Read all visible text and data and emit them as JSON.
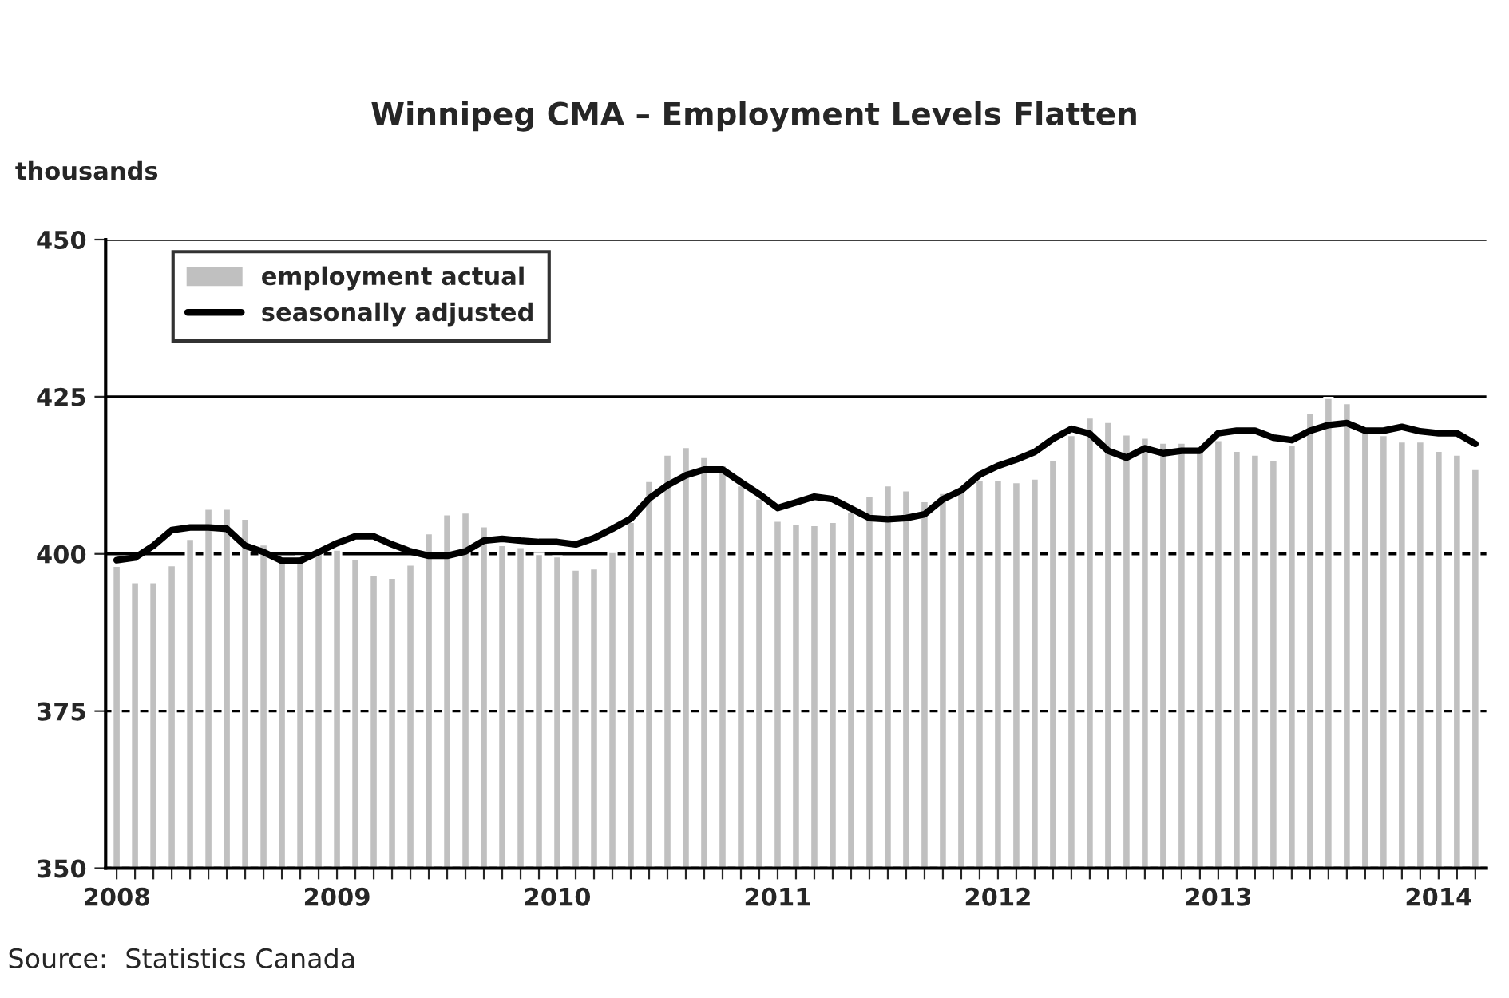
{
  "chart_data": {
    "type": "bar",
    "title": "Winnipeg CMA – Employment Levels Flatten",
    "ylabel": "thousands",
    "categories": [
      "2008",
      null,
      null,
      null,
      null,
      null,
      null,
      null,
      null,
      null,
      null,
      null,
      "2009",
      null,
      null,
      null,
      null,
      null,
      null,
      null,
      null,
      null,
      null,
      null,
      "2010",
      null,
      null,
      null,
      null,
      null,
      null,
      null,
      null,
      null,
      null,
      null,
      "2011",
      null,
      null,
      null,
      null,
      null,
      null,
      null,
      null,
      null,
      null,
      null,
      "2012",
      null,
      null,
      null,
      null,
      null,
      null,
      null,
      null,
      null,
      null,
      null,
      "2013",
      null,
      null,
      null,
      null,
      null,
      null,
      null,
      null,
      null,
      null,
      null,
      "2014",
      null,
      null
    ],
    "series": [
      {
        "name": "employment actual",
        "color": "#c0c0c0",
        "values": [
          398.1,
          395.5,
          395.5,
          398.2,
          402.4,
          407.2,
          407.2,
          405.6,
          401.5,
          399.0,
          399.6,
          400.7,
          400.7,
          399.2,
          396.6,
          396.2,
          398.3,
          403.3,
          406.3,
          406.6,
          404.4,
          401.4,
          401.1,
          400.0,
          399.6,
          397.5,
          397.7,
          400.3,
          405.1,
          411.6,
          415.8,
          417.0,
          415.4,
          414.1,
          410.9,
          408.8,
          405.3,
          404.8,
          404.6,
          405.1,
          406.7,
          409.2,
          410.9,
          410.1,
          408.4,
          409.7,
          410.1,
          411.8,
          411.7,
          411.4,
          412.0,
          414.9,
          418.9,
          421.7,
          421.0,
          419.0,
          418.5,
          417.7,
          417.7,
          416.4,
          418.1,
          416.4,
          415.8,
          414.9,
          417.3,
          422.5,
          424.8,
          424.0,
          419.4,
          418.9,
          417.9,
          417.9,
          416.4,
          415.8,
          413.5
        ]
      },
      {
        "name": "seasonally adjusted",
        "type": "line",
        "color": "#000000",
        "values": [
          399.0,
          399.4,
          401.3,
          403.8,
          404.2,
          404.2,
          404.0,
          401.3,
          400.3,
          398.9,
          398.9,
          400.3,
          401.7,
          402.8,
          402.8,
          401.5,
          400.4,
          399.7,
          399.7,
          400.4,
          402.1,
          402.4,
          402.1,
          401.9,
          401.9,
          401.5,
          402.5,
          404.0,
          405.6,
          408.8,
          410.9,
          412.5,
          413.4,
          413.4,
          411.4,
          409.5,
          407.3,
          408.2,
          409.1,
          408.7,
          407.2,
          405.7,
          405.5,
          405.7,
          406.3,
          408.7,
          410.1,
          412.6,
          414.0,
          415.0,
          416.2,
          418.3,
          419.9,
          419.1,
          416.4,
          415.3,
          416.8,
          416.0,
          416.4,
          416.4,
          419.2,
          419.6,
          419.6,
          418.5,
          418.1,
          419.6,
          420.5,
          420.8,
          419.6,
          419.6,
          420.2,
          419.5,
          419.2,
          419.2,
          417.5
        ]
      }
    ],
    "ylim": [
      350,
      450
    ],
    "yticks": [
      350,
      375,
      400,
      425,
      450
    ],
    "grid": "y",
    "legend": "top left",
    "line_style": "solid",
    "marker": "none",
    "annotations": [
      "Source:  Statistics Canada"
    ]
  }
}
